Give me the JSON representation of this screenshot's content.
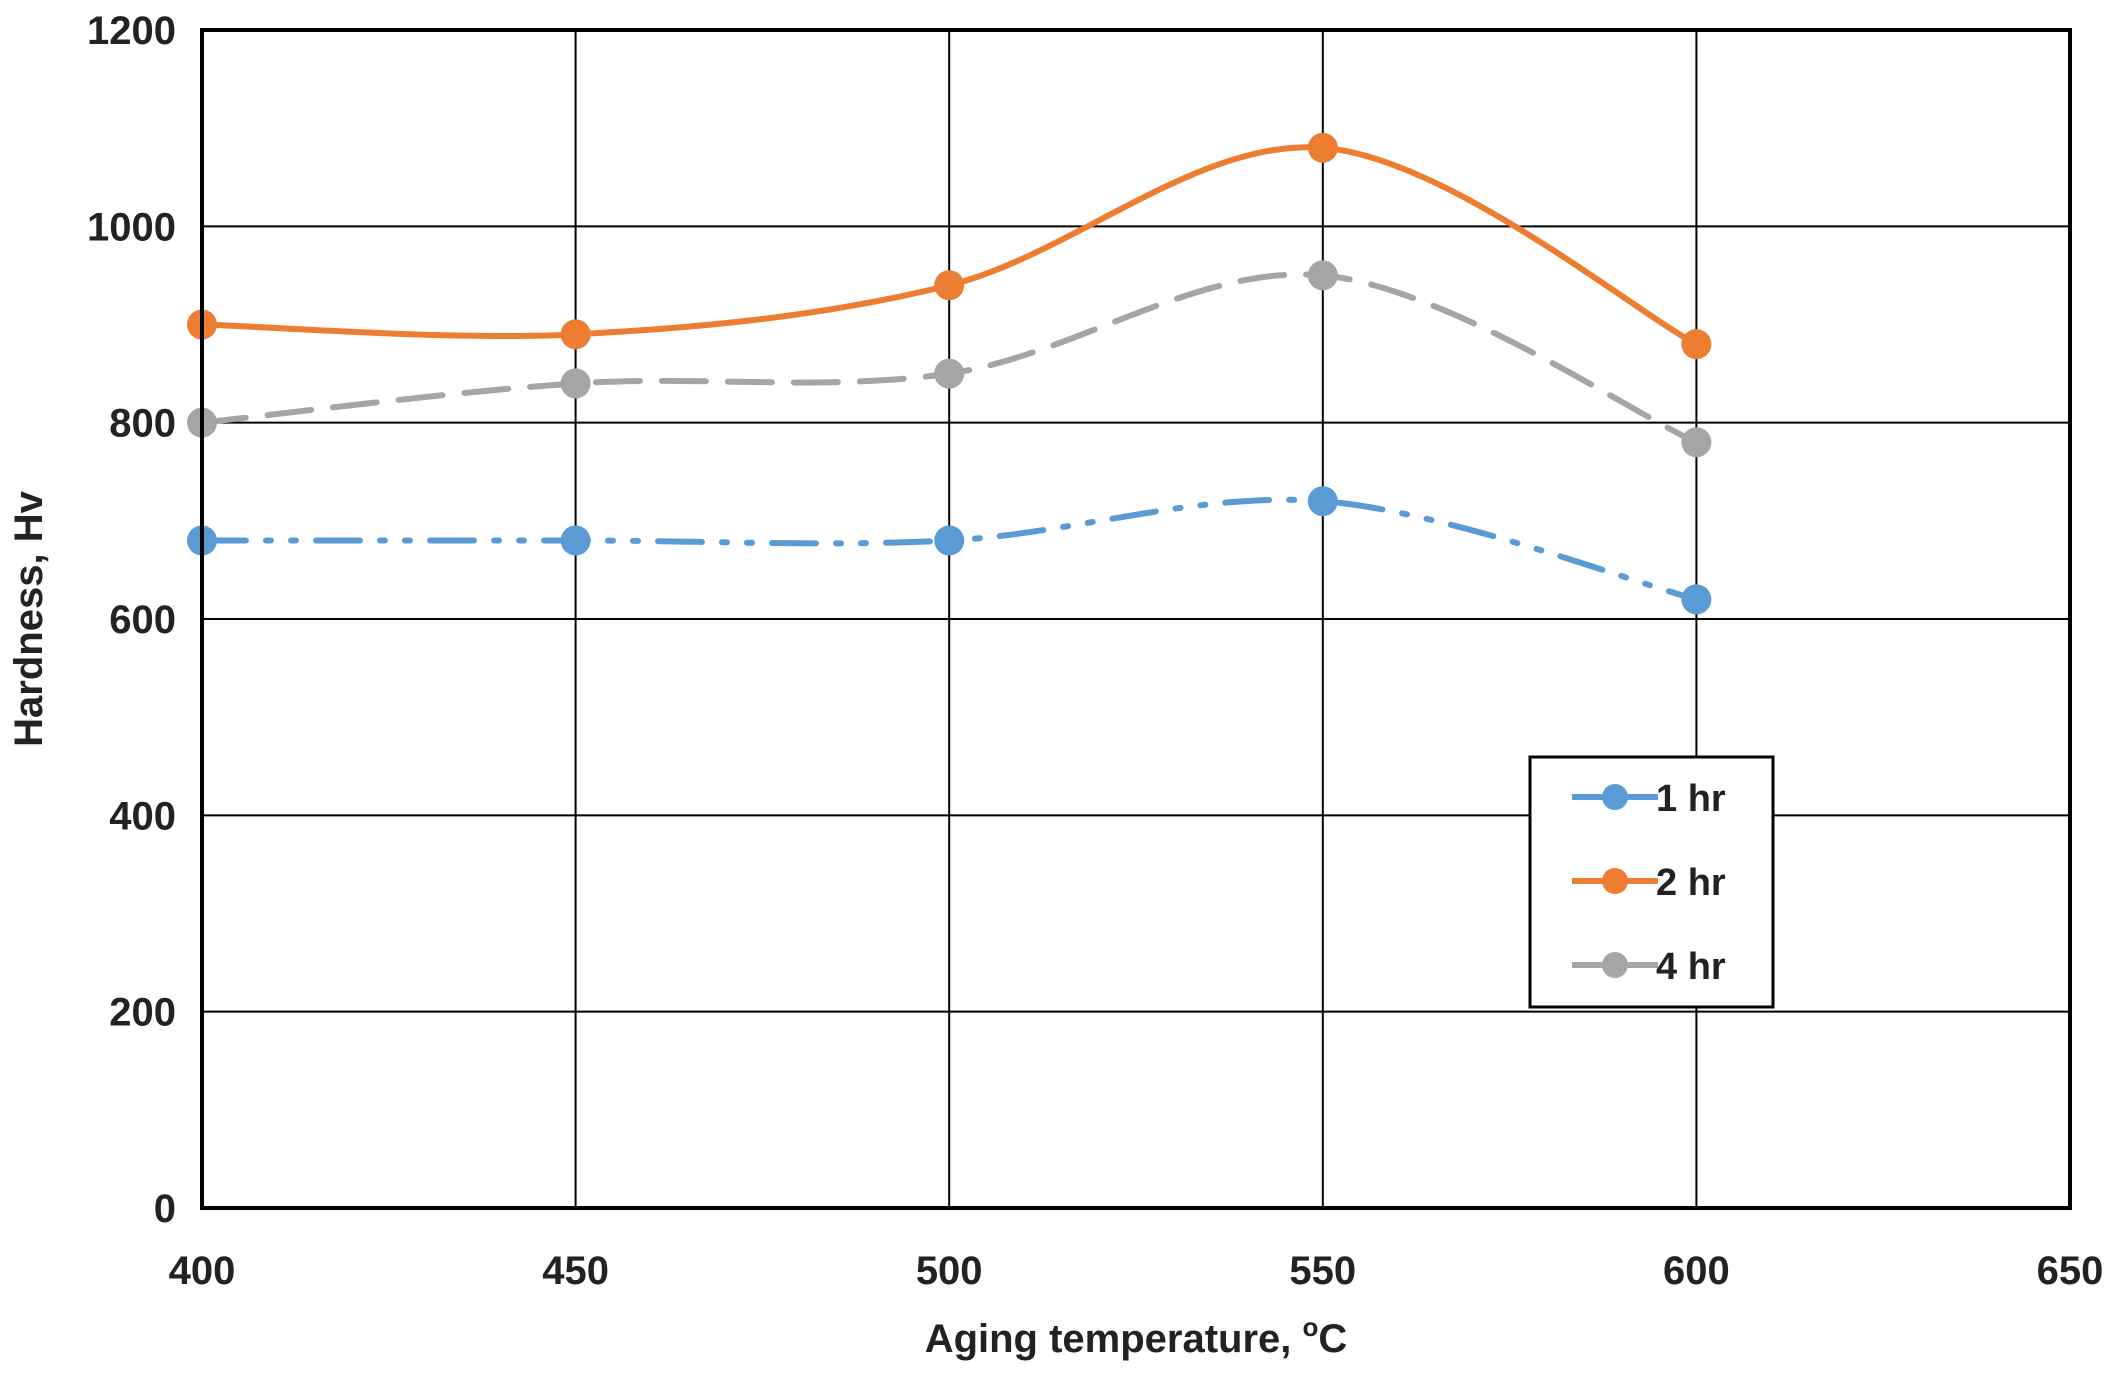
{
  "chart_data": {
    "type": "line",
    "title": "",
    "xlabel": "Aging temperature, ",
    "xlabel_unit_sup": "o",
    "xlabel_unit": "C",
    "ylabel": "Hardness, Hv",
    "xlim": [
      400,
      650
    ],
    "ylim": [
      0,
      1200
    ],
    "x_ticks": [
      400,
      450,
      500,
      550,
      600,
      650
    ],
    "y_ticks": [
      0,
      200,
      400,
      600,
      800,
      1000,
      1200
    ],
    "grid": true,
    "legend_position": "center-right",
    "x": [
      400,
      450,
      500,
      550,
      600
    ],
    "series": [
      {
        "name": "1 hr",
        "values": [
          680,
          680,
          680,
          720,
          620
        ],
        "color": "#5b9bd5",
        "dash": "long-dash-dot-dot"
      },
      {
        "name": "2 hr",
        "values": [
          900,
          890,
          940,
          1080,
          880
        ],
        "color": "#ed7d31",
        "dash": "solid"
      },
      {
        "name": "4 hr",
        "values": [
          800,
          840,
          850,
          950,
          780
        ],
        "color": "#a5a5a5",
        "dash": "dashed"
      }
    ]
  }
}
